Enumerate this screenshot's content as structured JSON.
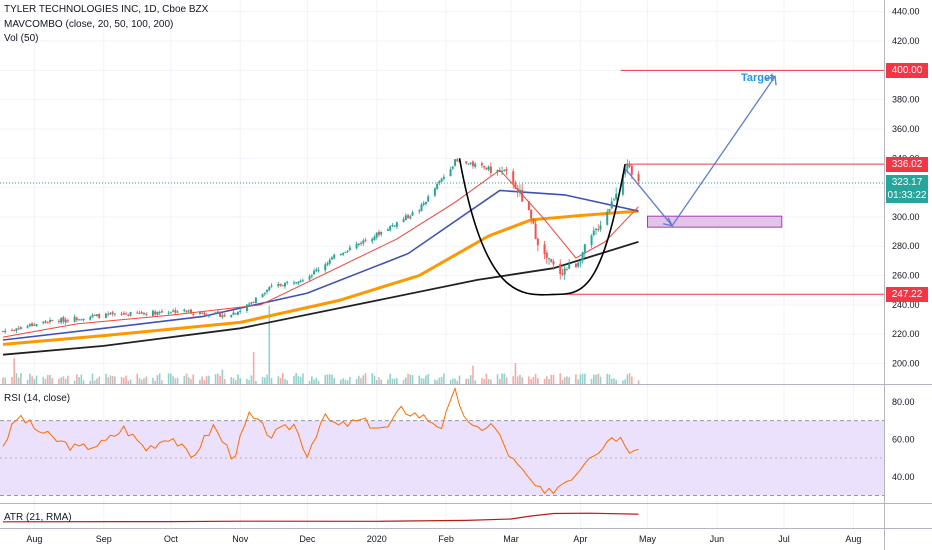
{
  "legend": {
    "symbol": "TYLER TECHNOLOGIES INC, 1D, Cboe BZX",
    "ma_label": "MAVCOMBO (close, 20, 50, 100, 200)",
    "vol_label": "Vol (50)",
    "rsi_label": "RSI (14, close)",
    "atr_label": "ATR (21, RMA)"
  },
  "annotations": {
    "target_label": "Target",
    "price_badges": [
      {
        "text": "400.00",
        "value": 400,
        "color": "#f23645"
      },
      {
        "text": "336.02",
        "value": 336.02,
        "color": "#f23645"
      },
      {
        "text": "323.17",
        "value": 323.17,
        "color": "#26a69a"
      },
      {
        "text": "01:33:22",
        "value": 314.5,
        "color": "#26a69a"
      },
      {
        "text": "247.22",
        "value": 247.22,
        "color": "#f23645"
      }
    ]
  },
  "colors": {
    "up": "#26a69a",
    "down": "#ef5350",
    "ma20": "#f44336",
    "ma50": "#ff9800",
    "ma100": "#3f51b5",
    "ma200": "#212121",
    "rsi_line": "#ff6d00",
    "rsi_band": "#e9dcfb",
    "atr_line": "#b71c1c",
    "annotation": "#5b7bd5",
    "cup": "#000000",
    "box": "#e1bee7"
  },
  "chart_data": {
    "type": "candlestick",
    "price_axis": {
      "ticks": [
        200,
        220,
        240,
        260,
        280,
        300,
        320,
        340,
        360,
        380,
        400,
        420,
        440
      ],
      "range": [
        186,
        448
      ]
    },
    "rsi_axis": {
      "ticks": [
        40,
        60,
        80
      ],
      "range": [
        26,
        89
      ],
      "band": [
        30,
        70
      ]
    },
    "time_axis": {
      "labels": [
        {
          "text": "Aug",
          "date": "2019-08-01"
        },
        {
          "text": "Sep",
          "date": "2019-09-01"
        },
        {
          "text": "Oct",
          "date": "2019-10-01"
        },
        {
          "text": "Nov",
          "date": "2019-11-01"
        },
        {
          "text": "Dec",
          "date": "2019-12-01"
        },
        {
          "text": "2020",
          "date": "2020-01-01"
        },
        {
          "text": "Feb",
          "date": "2020-02-01"
        },
        {
          "text": "Mar",
          "date": "2020-03-01"
        },
        {
          "text": "Apr",
          "date": "2020-04-01"
        },
        {
          "text": "May",
          "date": "2020-05-01"
        },
        {
          "text": "Jun",
          "date": "2020-06-01"
        },
        {
          "text": "Jul",
          "date": "2020-07-01"
        },
        {
          "text": "Aug",
          "date": "2020-08-01"
        }
      ]
    },
    "price_path": [
      [
        "2019-07-18",
        222
      ],
      [
        "2019-08-05",
        228
      ],
      [
        "2019-08-25",
        232
      ],
      [
        "2019-09-15",
        234
      ],
      [
        "2019-10-05",
        236
      ],
      [
        "2019-10-25",
        233
      ],
      [
        "2019-11-01",
        236
      ],
      [
        "2019-11-15",
        252
      ],
      [
        "2019-12-01",
        259
      ],
      [
        "2019-12-15",
        275
      ],
      [
        "2020-01-01",
        288
      ],
      [
        "2020-01-20",
        305
      ],
      [
        "2020-02-05",
        338
      ],
      [
        "2020-02-20",
        333
      ],
      [
        "2020-03-01",
        328
      ],
      [
        "2020-03-08",
        306
      ],
      [
        "2020-03-15",
        275
      ],
      [
        "2020-03-22",
        262
      ],
      [
        "2020-03-30",
        268
      ],
      [
        "2020-04-07",
        288
      ],
      [
        "2020-04-15",
        310
      ],
      [
        "2020-04-21",
        335
      ],
      [
        "2020-04-27",
        323
      ]
    ],
    "ma20": [
      [
        "2019-07-18",
        218
      ],
      [
        "2019-08-20",
        227
      ],
      [
        "2019-10-01",
        233
      ],
      [
        "2019-11-10",
        240
      ],
      [
        "2019-12-10",
        262
      ],
      [
        "2020-01-10",
        285
      ],
      [
        "2020-02-05",
        310
      ],
      [
        "2020-02-25",
        332
      ],
      [
        "2020-03-15",
        300
      ],
      [
        "2020-03-30",
        272
      ],
      [
        "2020-04-12",
        283
      ],
      [
        "2020-04-27",
        307
      ]
    ],
    "ma50": [
      [
        "2019-07-18",
        213
      ],
      [
        "2019-09-01",
        219
      ],
      [
        "2019-11-01",
        228
      ],
      [
        "2019-12-15",
        243
      ],
      [
        "2020-01-20",
        260
      ],
      [
        "2020-02-20",
        287
      ],
      [
        "2020-03-10",
        298
      ],
      [
        "2020-04-01",
        301
      ],
      [
        "2020-04-27",
        304
      ]
    ],
    "ma100": [
      [
        "2019-07-18",
        216
      ],
      [
        "2019-09-01",
        224
      ],
      [
        "2019-10-15",
        232
      ],
      [
        "2019-12-01",
        248
      ],
      [
        "2020-01-15",
        275
      ],
      [
        "2020-02-25",
        318
      ],
      [
        "2020-03-25",
        315
      ],
      [
        "2020-04-27",
        304
      ]
    ],
    "ma200": [
      [
        "2019-07-18",
        206
      ],
      [
        "2019-09-01",
        212
      ],
      [
        "2019-11-01",
        224
      ],
      [
        "2020-01-01",
        243
      ],
      [
        "2020-02-15",
        257
      ],
      [
        "2020-03-20",
        265
      ],
      [
        "2020-04-27",
        283
      ]
    ],
    "rsi_path": [
      [
        "2019-07-18",
        57
      ],
      [
        "2019-07-25",
        73
      ],
      [
        "2019-08-01",
        66
      ],
      [
        "2019-08-10",
        60
      ],
      [
        "2019-08-20",
        55
      ],
      [
        "2019-09-01",
        58
      ],
      [
        "2019-09-10",
        66
      ],
      [
        "2019-09-20",
        55
      ],
      [
        "2019-10-01",
        62
      ],
      [
        "2019-10-10",
        50
      ],
      [
        "2019-10-20",
        67
      ],
      [
        "2019-10-29",
        50
      ],
      [
        "2019-11-05",
        73
      ],
      [
        "2019-11-15",
        62
      ],
      [
        "2019-11-25",
        68
      ],
      [
        "2019-12-01",
        52
      ],
      [
        "2019-12-08",
        72
      ],
      [
        "2019-12-15",
        67
      ],
      [
        "2019-12-25",
        70
      ],
      [
        "2020-01-05",
        65
      ],
      [
        "2020-01-12",
        76
      ],
      [
        "2020-01-22",
        72
      ],
      [
        "2020-01-30",
        67
      ],
      [
        "2020-02-05",
        85
      ],
      [
        "2020-02-12",
        65
      ],
      [
        "2020-02-22",
        68
      ],
      [
        "2020-03-01",
        50
      ],
      [
        "2020-03-08",
        40
      ],
      [
        "2020-03-16",
        30
      ],
      [
        "2020-03-22",
        35
      ],
      [
        "2020-03-30",
        42
      ],
      [
        "2020-04-05",
        52
      ],
      [
        "2020-04-10",
        55
      ],
      [
        "2020-04-15",
        62
      ],
      [
        "2020-04-20",
        60
      ],
      [
        "2020-04-23",
        55
      ],
      [
        "2020-04-27",
        57
      ]
    ],
    "atr_path": [
      [
        "2019-07-18",
        6.2
      ],
      [
        "2019-10-01",
        6.4
      ],
      [
        "2019-11-01",
        6.8
      ],
      [
        "2020-01-01",
        6.7
      ],
      [
        "2020-02-10",
        7.6
      ],
      [
        "2020-03-01",
        9.0
      ],
      [
        "2020-03-10",
        12.0
      ],
      [
        "2020-03-20",
        14.5
      ],
      [
        "2020-04-05",
        14.8
      ],
      [
        "2020-04-27",
        13.8
      ]
    ],
    "volume_spikes": [
      [
        "2019-07-23",
        3.2
      ],
      [
        "2019-10-24",
        1.8
      ],
      [
        "2019-11-07",
        4.0
      ],
      [
        "2019-11-14",
        9.8
      ],
      [
        "2020-02-13",
        2.3
      ],
      [
        "2020-03-03",
        2.6
      ]
    ],
    "resistance_400": 400,
    "resistance_336": 336.02,
    "support_247": 247.22,
    "last_price": 323.17,
    "target_box": {
      "date_from": "2020-05-01",
      "date_to": "2020-06-30",
      "low": 293,
      "high": 300.5
    },
    "projection": [
      [
        "2020-04-21",
        333
      ],
      [
        "2020-05-12",
        294
      ],
      [
        "2020-06-27",
        396
      ]
    ],
    "cup": [
      [
        "2020-02-07",
        340
      ],
      [
        "2020-03-19",
        247
      ],
      [
        "2020-04-21",
        336
      ]
    ]
  }
}
